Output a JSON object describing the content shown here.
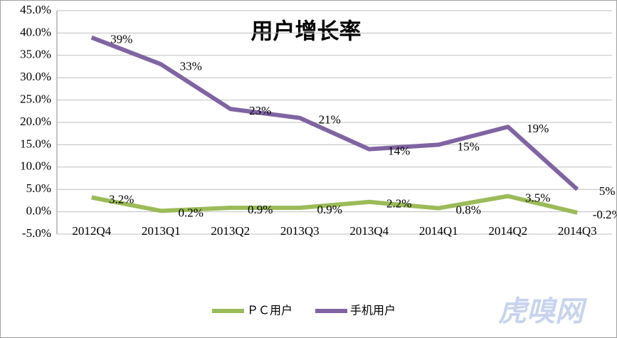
{
  "chart_data": {
    "type": "line",
    "title": "用户增长率",
    "categories": [
      "2012Q4",
      "2013Q1",
      "2013Q2",
      "2013Q3",
      "2013Q4",
      "2014Q1",
      "2014Q2",
      "2014Q3"
    ],
    "series": [
      {
        "name": "ＰＣ用户",
        "color": "#9bbb59",
        "values": [
          3.2,
          0.2,
          0.9,
          0.9,
          2.2,
          0.8,
          3.5,
          -0.2
        ],
        "value_labels": [
          "3.2%",
          "0.2%",
          "0.9%",
          "0.9%",
          "2.2%",
          "0.8%",
          "3.5%",
          "-0.2%"
        ]
      },
      {
        "name": "手机用户",
        "color": "#8064a2",
        "values": [
          39,
          33,
          23,
          21,
          14,
          15,
          19,
          5
        ],
        "value_labels": [
          "39%",
          "33%",
          "23%",
          "21%",
          "14%",
          "15%",
          "19%",
          "5%"
        ]
      }
    ],
    "ylim": [
      -5,
      45
    ],
    "yticks": [
      {
        "value": -5,
        "label": "-5.0%"
      },
      {
        "value": 0,
        "label": "0.0%"
      },
      {
        "value": 5,
        "label": "5.0%"
      },
      {
        "value": 10,
        "label": "10.0%"
      },
      {
        "value": 15,
        "label": "15.0%"
      },
      {
        "value": 20,
        "label": "20.0%"
      },
      {
        "value": 25,
        "label": "25.0%"
      },
      {
        "value": 30,
        "label": "30.0%"
      },
      {
        "value": 35,
        "label": "35.0%"
      },
      {
        "value": 40,
        "label": "40.0%"
      },
      {
        "value": 45,
        "label": "45.0%"
      }
    ],
    "grid": true,
    "legend": "bottom"
  },
  "watermark": "虎嗅网"
}
